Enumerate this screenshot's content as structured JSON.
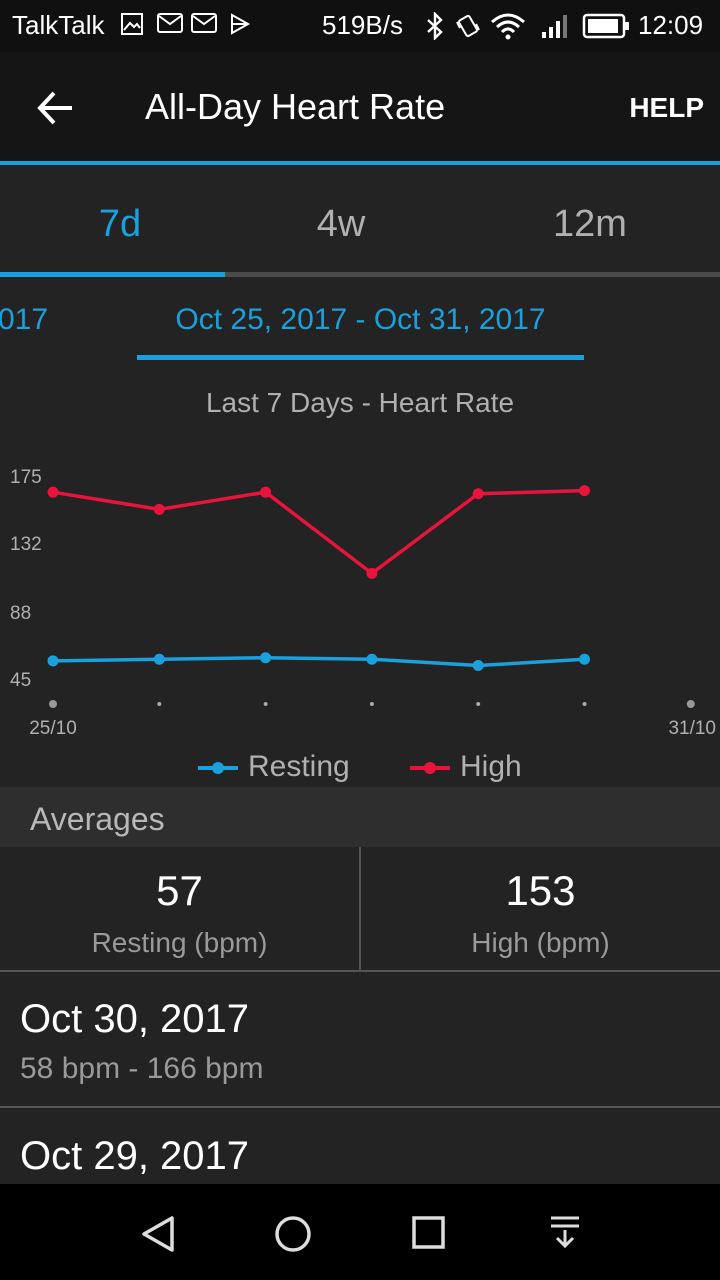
{
  "status_bar": {
    "carrier": "TalkTalk",
    "net_speed": "519B/s",
    "time": "12:09",
    "icons": [
      "image-icon",
      "mail-icon",
      "mail-icon",
      "play-store-icon",
      "bluetooth-icon",
      "vibrate-icon",
      "wifi-icon",
      "signal-icon",
      "battery-icon"
    ]
  },
  "app_bar": {
    "title": "All-Day Heart Rate",
    "help_label": "HELP",
    "back_icon": "arrow-left-icon"
  },
  "tabs": [
    {
      "label": "7d",
      "active": true
    },
    {
      "label": "4w",
      "active": false
    },
    {
      "label": "12m",
      "active": false
    }
  ],
  "date_range": {
    "prev_partial": "017",
    "current": "Oct 25, 2017 - Oct 31, 2017"
  },
  "chart_data": {
    "type": "line",
    "title": "Last 7 Days - Heart Rate",
    "x_labels": [
      "25/10",
      "",
      "",
      "",
      "",
      "",
      "31/10"
    ],
    "x": [
      0,
      1,
      2,
      3,
      4,
      5
    ],
    "y_ticks": [
      45,
      88,
      132,
      175
    ],
    "ylim": [
      45,
      175
    ],
    "series": [
      {
        "name": "Resting",
        "color": "#1aa0dd",
        "values": [
          56,
          57,
          58,
          57,
          53,
          57
        ]
      },
      {
        "name": "High",
        "color": "#e8143c",
        "values": [
          164,
          153,
          164,
          112,
          163,
          165
        ]
      }
    ],
    "legend": "bottom-center"
  },
  "averages": {
    "header": "Averages",
    "resting_value": "57",
    "resting_label": "Resting (bpm)",
    "high_value": "153",
    "high_label": "High (bpm)"
  },
  "days": [
    {
      "date": "Oct 30, 2017",
      "range": "58 bpm - 166 bpm"
    },
    {
      "date": "Oct 29, 2017",
      "range": ""
    }
  ],
  "nav_bar": {
    "icons": [
      "back-triangle-icon",
      "home-circle-icon",
      "recents-square-icon",
      "notification-pull-icon"
    ]
  }
}
